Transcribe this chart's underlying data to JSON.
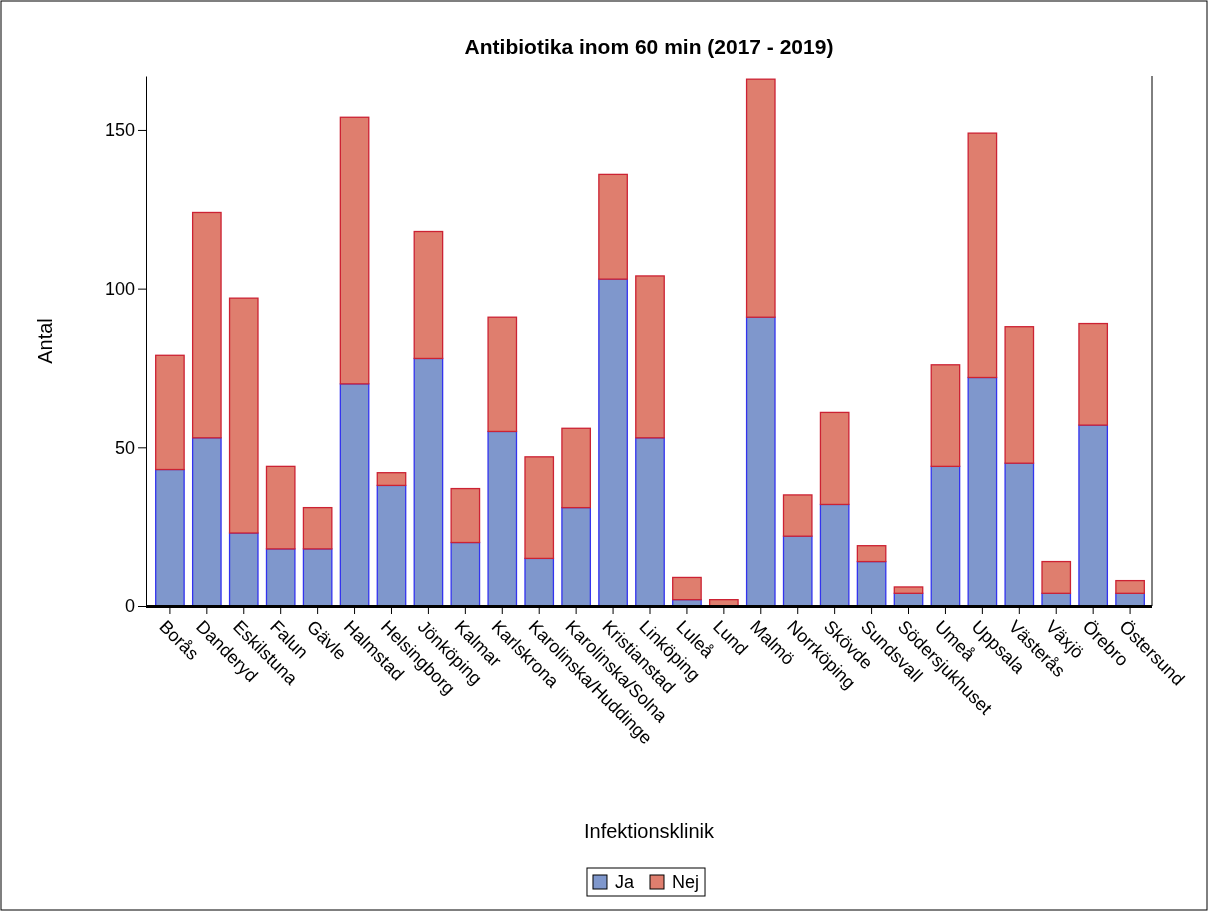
{
  "chart_data": {
    "type": "bar",
    "title": "Antibiotika inom 60 min (2017 - 2019)",
    "xlabel": "Infektionsklinik",
    "ylabel": "Antal",
    "categories": [
      "Borås",
      "Danderyd",
      "Eskilstuna",
      "Falun",
      "Gävle",
      "Halmstad",
      "Helsingborg",
      "Jönköping",
      "Kalmar",
      "Karlskrona",
      "Karolinska/Huddinge",
      "Karolinska/Solna",
      "Kristianstad",
      "Linköping",
      "Luleå",
      "Lund",
      "Malmö",
      "Norrköping",
      "Skövde",
      "Sundsvall",
      "Södersjukhuset",
      "Umeå",
      "Uppsala",
      "Västerås",
      "Växjö",
      "Örebro",
      "Östersund"
    ],
    "series": [
      {
        "name": "Ja",
        "color": "#7f97cc",
        "values": [
          43,
          53,
          23,
          18,
          18,
          70,
          38,
          78,
          20,
          55,
          15,
          31,
          103,
          53,
          2,
          0,
          91,
          22,
          32,
          14,
          4,
          44,
          72,
          45,
          4,
          57,
          4
        ]
      },
      {
        "name": "Nej",
        "color": "#df7e6e",
        "values": [
          36,
          71,
          74,
          26,
          13,
          84,
          4,
          40,
          17,
          36,
          32,
          25,
          33,
          51,
          7,
          2,
          75,
          13,
          29,
          5,
          2,
          32,
          77,
          43,
          10,
          32,
          4
        ]
      }
    ],
    "stacked": true,
    "ylim": [
      0,
      167
    ],
    "yticks": [
      0,
      50,
      100,
      150
    ],
    "grid": false,
    "legend": "bottom"
  }
}
